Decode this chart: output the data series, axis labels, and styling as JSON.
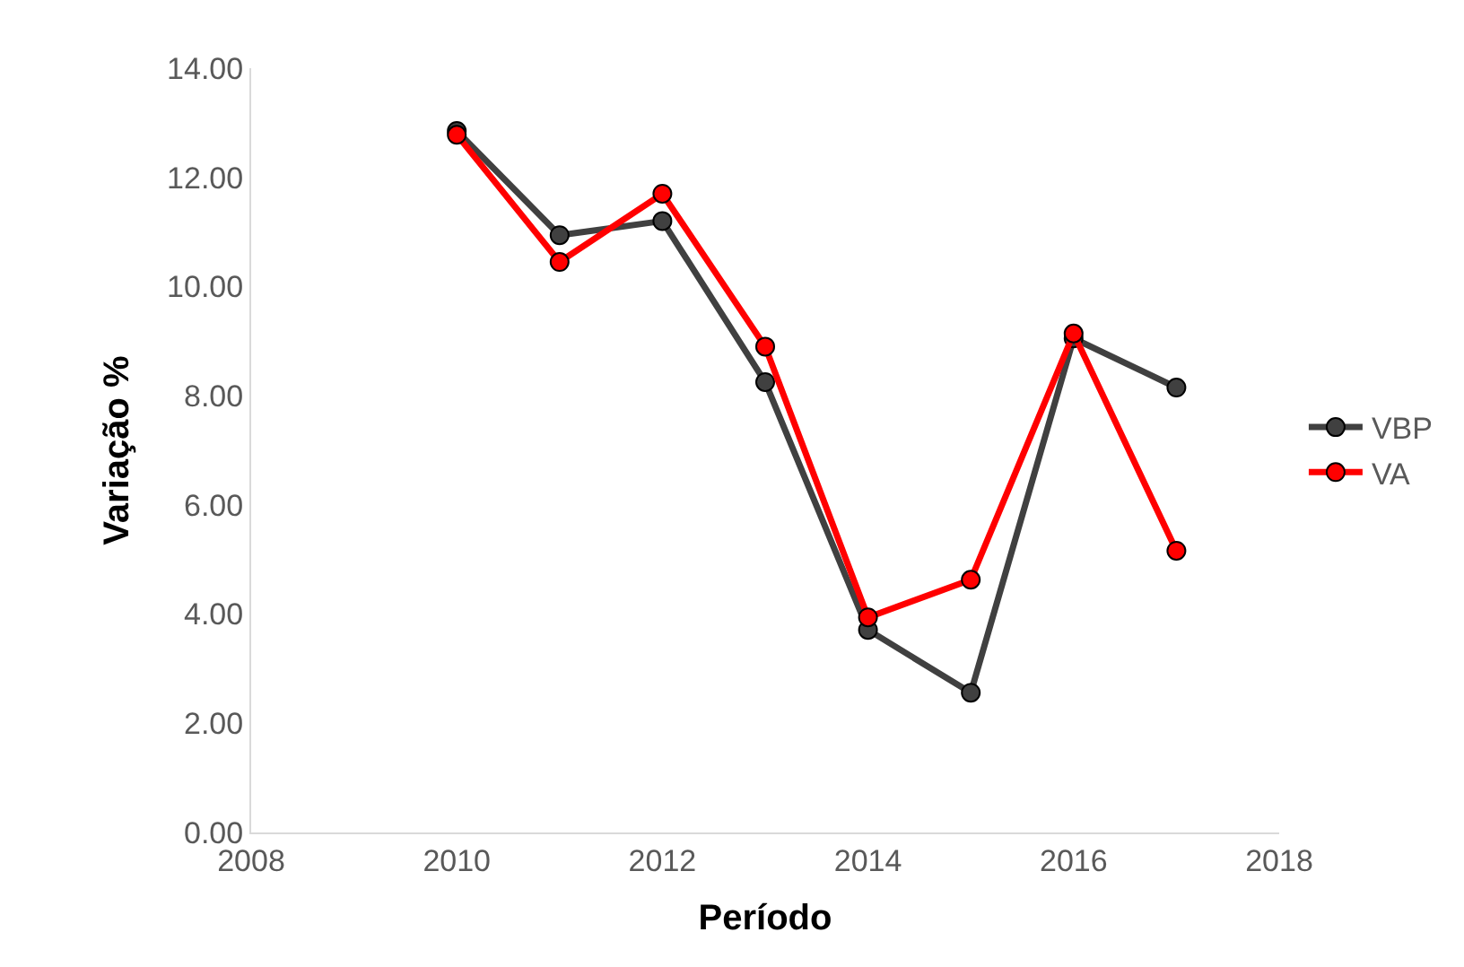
{
  "chart_data": {
    "type": "line",
    "xlabel": "Período",
    "ylabel": "Variação %",
    "x": [
      2010,
      2011,
      2012,
      2013,
      2014,
      2015,
      2016,
      2017
    ],
    "series": [
      {
        "name": "VBP",
        "color": "#404040",
        "values": [
          12.85,
          10.94,
          11.2,
          8.25,
          3.71,
          2.56,
          9.05,
          8.15
        ]
      },
      {
        "name": "VA",
        "color": "#ff0000",
        "values": [
          12.78,
          10.45,
          11.7,
          8.9,
          3.94,
          4.63,
          9.14,
          5.16
        ]
      }
    ],
    "xlim": [
      2008,
      2018
    ],
    "xticks": [
      2008,
      2010,
      2012,
      2014,
      2016,
      2018
    ],
    "ylim": [
      0,
      14
    ],
    "yticks": [
      {
        "value": 0,
        "label": "0.00"
      },
      {
        "value": 2,
        "label": "2.00"
      },
      {
        "value": 4,
        "label": "4.00"
      },
      {
        "value": 6,
        "label": "6.00"
      },
      {
        "value": 8,
        "label": "8.00"
      },
      {
        "value": 10,
        "label": "10.00"
      },
      {
        "value": 12,
        "label": "12.00"
      },
      {
        "value": 14,
        "label": "14.00"
      }
    ],
    "legend": "right",
    "marker": "circle",
    "line_style": "solid"
  }
}
